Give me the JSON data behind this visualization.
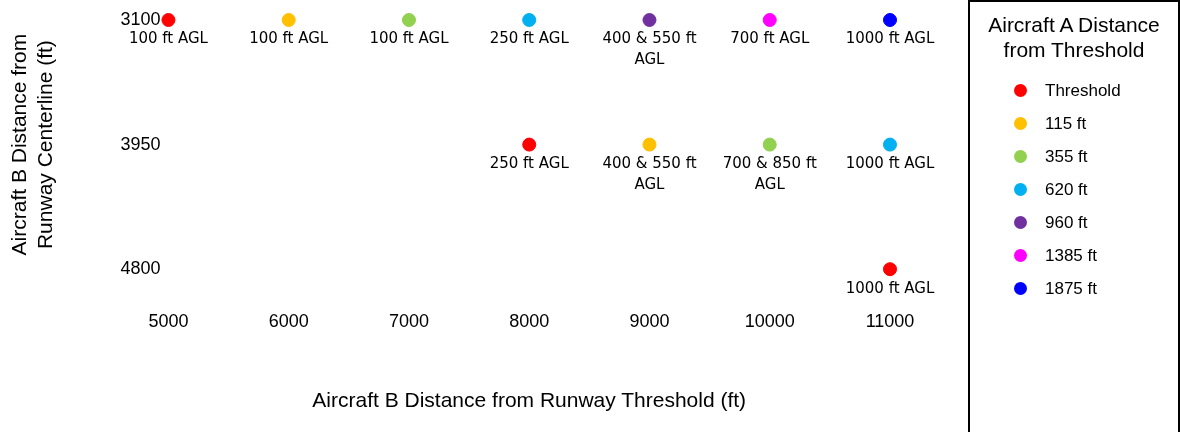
{
  "chart_data": {
    "type": "scatter",
    "xlabel": "Aircraft B Distance from Runway Threshold (ft)",
    "ylabel": "Aircraft B Distance from Runway Centerline (ft)",
    "legend_title": "Aircraft A Distance from Threshold",
    "xlim": [
      5000,
      11000
    ],
    "xticks": [
      5000,
      6000,
      7000,
      8000,
      9000,
      10000,
      11000
    ],
    "ylim": [
      4800,
      3100
    ],
    "yticks": [
      3100,
      3950,
      4800
    ],
    "grid": false,
    "legend": "right",
    "marker": "circle",
    "series": [
      {
        "name": "Threshold",
        "color": "#ff0000",
        "x": [
          5000,
          8000,
          11000
        ],
        "values": [
          3100,
          3950,
          4800
        ]
      },
      {
        "name": "115 ft",
        "color": "#ffc000",
        "x": [
          6000,
          9000
        ],
        "values": [
          3100,
          3950
        ]
      },
      {
        "name": "355 ft",
        "color": "#92d050",
        "x": [
          7000,
          10000
        ],
        "values": [
          3100,
          3950
        ]
      },
      {
        "name": "620 ft",
        "color": "#00b0f0",
        "x": [
          8000,
          11000
        ],
        "values": [
          3100,
          3950
        ]
      },
      {
        "name": "960 ft",
        "color": "#7030a0",
        "x": [
          9000
        ],
        "values": [
          3100
        ]
      },
      {
        "name": "1385 ft",
        "color": "#ff00ff",
        "x": [
          10000
        ],
        "values": [
          3100
        ]
      },
      {
        "name": "1875 ft",
        "color": "#0000ff",
        "x": [
          11000
        ],
        "values": [
          3100
        ]
      }
    ],
    "annotations": [
      {
        "text": "100 ft AGL",
        "x": 5000,
        "y": 3100
      },
      {
        "text": "100 ft AGL",
        "x": 6000,
        "y": 3100
      },
      {
        "text": "100 ft AGL",
        "x": 7000,
        "y": 3100
      },
      {
        "text": "250 ft AGL",
        "x": 8000,
        "y": 3100
      },
      {
        "text": "400 & 550 ft AGL",
        "x": 9000,
        "y": 3100
      },
      {
        "text": "700 ft AGL",
        "x": 10000,
        "y": 3100
      },
      {
        "text": "1000 ft AGL",
        "x": 11000,
        "y": 3100
      },
      {
        "text": "250 ft AGL",
        "x": 8000,
        "y": 3950
      },
      {
        "text": "400 & 550 ft AGL",
        "x": 9000,
        "y": 3950
      },
      {
        "text": "700 & 850 ft AGL",
        "x": 10000,
        "y": 3950
      },
      {
        "text": "1000 ft AGL",
        "x": 11000,
        "y": 3950
      },
      {
        "text": "1000 ft AGL",
        "x": 11000,
        "y": 4800
      }
    ]
  }
}
